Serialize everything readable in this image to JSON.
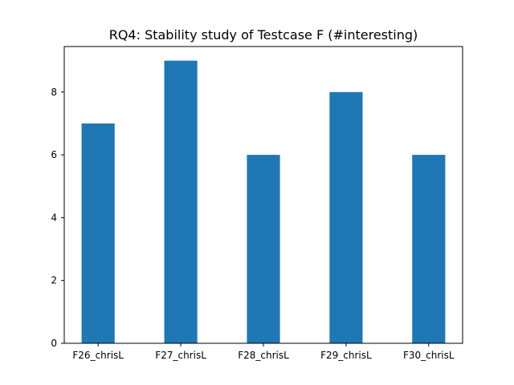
{
  "chart_data": {
    "type": "bar",
    "title": "RQ4: Stability study of Testcase F (#interesting)",
    "xlabel": "",
    "ylabel": "",
    "categories": [
      "F26_chrisL",
      "F27_chrisL",
      "F28_chrisL",
      "F29_chrisL",
      "F30_chrisL"
    ],
    "values": [
      7,
      9,
      6,
      8,
      6
    ],
    "ylim": [
      0,
      9.45
    ],
    "yticks": [
      0,
      2,
      4,
      6,
      8
    ],
    "bar_color": "#1f77b4",
    "grid": false,
    "legend": "none"
  }
}
